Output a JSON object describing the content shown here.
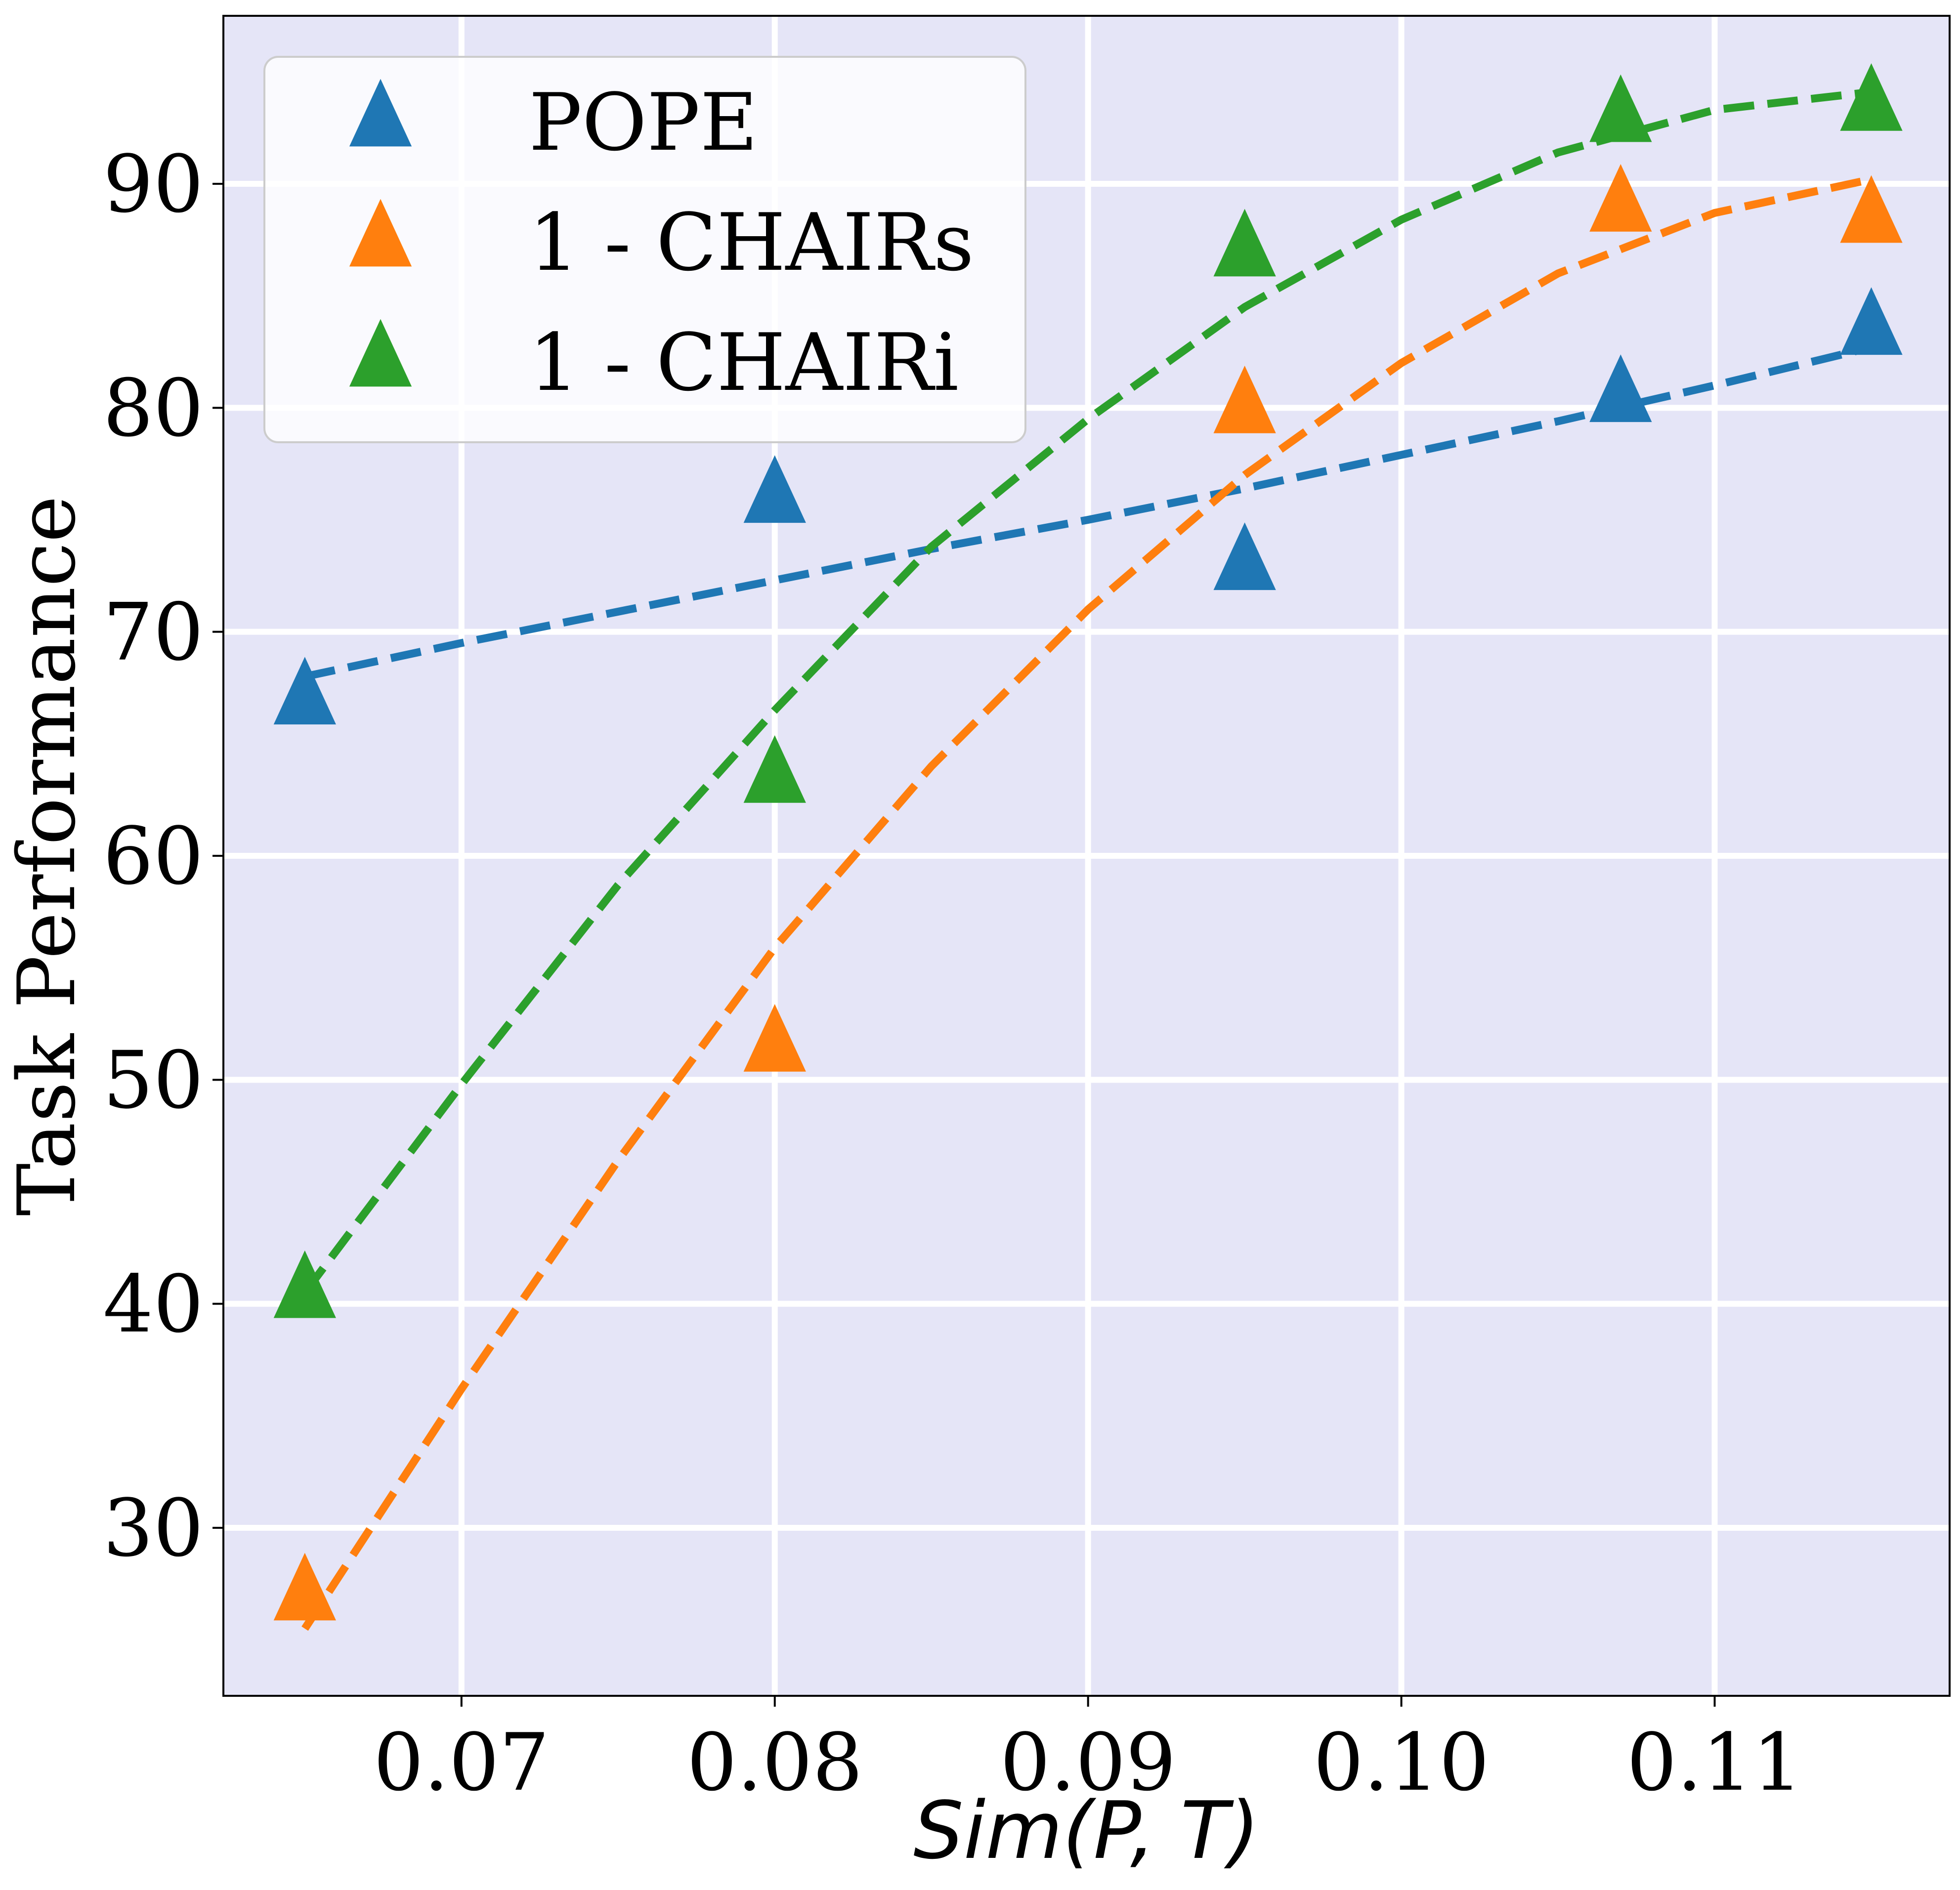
{
  "chart_data": {
    "type": "scatter",
    "xlabel": "Sim(P, T)",
    "ylabel": "Task Performance",
    "xlim": [
      0.0624,
      0.1175
    ],
    "ylim": [
      22.5,
      97.5
    ],
    "xticks": [
      "0.07",
      "0.08",
      "0.09",
      "0.10",
      "0.11"
    ],
    "xtick_values": [
      0.07,
      0.08,
      0.09,
      0.1,
      0.11
    ],
    "yticks": [
      "30",
      "40",
      "50",
      "60",
      "70",
      "80",
      "90"
    ],
    "ytick_values": [
      30,
      40,
      50,
      60,
      70,
      80,
      90
    ],
    "grid": true,
    "legend_position": "top-left",
    "background_color": "#e5e5f7",
    "marker": "triangle-up",
    "series": [
      {
        "name": "POPE",
        "color": "#1f77b4",
        "x": [
          0.065,
          0.08,
          0.095,
          0.107,
          0.115
        ],
        "values": [
          67.0,
          76.0,
          73.0,
          80.5,
          83.5
        ],
        "trend_x": [
          0.065,
          0.07,
          0.075,
          0.08,
          0.085,
          0.09,
          0.095,
          0.1,
          0.105,
          0.11,
          0.115
        ],
        "trend_y": [
          68.0,
          69.5,
          70.9,
          72.3,
          73.7,
          75.0,
          76.4,
          77.9,
          79.4,
          81.0,
          82.7
        ]
      },
      {
        "name": "1 - CHAIRs",
        "color": "#ff7f0e",
        "x": [
          0.065,
          0.08,
          0.095,
          0.107,
          0.115
        ],
        "values": [
          27.0,
          51.5,
          80.0,
          89.0,
          88.5
        ],
        "trend_x": [
          0.065,
          0.07,
          0.075,
          0.08,
          0.085,
          0.09,
          0.095,
          0.1,
          0.105,
          0.11,
          0.115
        ],
        "trend_y": [
          25.5,
          36.2,
          46.4,
          55.9,
          64.0,
          71.0,
          77.0,
          82.0,
          86.0,
          88.7,
          90.2
        ]
      },
      {
        "name": "1 - CHAIRi",
        "color": "#2ca02c",
        "x": [
          0.065,
          0.08,
          0.095,
          0.107,
          0.115
        ],
        "values": [
          40.5,
          63.5,
          87.0,
          93.0,
          93.5
        ],
        "trend_x": [
          0.065,
          0.07,
          0.075,
          0.08,
          0.085,
          0.09,
          0.095,
          0.1,
          0.105,
          0.11,
          0.115
        ],
        "trend_y": [
          40.5,
          49.8,
          58.7,
          66.5,
          73.8,
          79.5,
          84.5,
          88.4,
          91.4,
          93.3,
          94.1
        ]
      }
    ]
  }
}
